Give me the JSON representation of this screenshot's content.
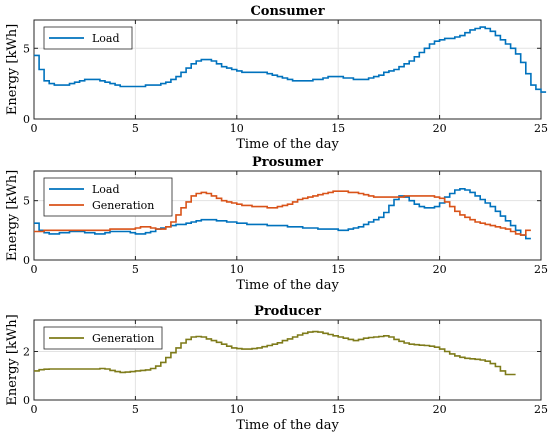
{
  "chart_data": [
    {
      "type": "line",
      "title": "Consumer",
      "xlabel": "Time of the day",
      "ylabel": "Energy [kWh]",
      "xlim": [
        0,
        25
      ],
      "ylim": [
        0,
        7
      ],
      "xticks": [
        0,
        5,
        10,
        15,
        20,
        25
      ],
      "yticks": [
        0,
        5
      ],
      "grid": true,
      "legend_position": "top-left",
      "series": [
        {
          "name": "Load",
          "color": "#0072BD",
          "step": 0.25,
          "values": [
            4.5,
            3.5,
            2.7,
            2.5,
            2.4,
            2.4,
            2.4,
            2.5,
            2.6,
            2.7,
            2.8,
            2.8,
            2.8,
            2.7,
            2.6,
            2.5,
            2.4,
            2.3,
            2.3,
            2.3,
            2.3,
            2.3,
            2.4,
            2.4,
            2.4,
            2.5,
            2.6,
            2.8,
            3.0,
            3.3,
            3.6,
            3.9,
            4.1,
            4.2,
            4.2,
            4.1,
            3.9,
            3.7,
            3.6,
            3.5,
            3.4,
            3.3,
            3.3,
            3.3,
            3.3,
            3.3,
            3.2,
            3.1,
            3.0,
            2.9,
            2.8,
            2.7,
            2.7,
            2.7,
            2.7,
            2.8,
            2.8,
            2.9,
            3.0,
            3.0,
            3.0,
            2.9,
            2.9,
            2.8,
            2.8,
            2.8,
            2.9,
            3.0,
            3.1,
            3.3,
            3.4,
            3.5,
            3.7,
            3.9,
            4.1,
            4.4,
            4.7,
            5.0,
            5.3,
            5.5,
            5.6,
            5.7,
            5.7,
            5.8,
            5.9,
            6.1,
            6.3,
            6.4,
            6.5,
            6.4,
            6.2,
            5.9,
            5.6,
            5.3,
            5.0,
            4.6,
            4.0,
            3.2,
            2.4,
            2.1,
            1.9
          ]
        }
      ]
    },
    {
      "type": "line",
      "title": "Prosumer",
      "xlabel": "Time of the day",
      "ylabel": "Energy [kWh]",
      "xlim": [
        0,
        25
      ],
      "ylim": [
        0,
        7.5
      ],
      "xticks": [
        0,
        5,
        10,
        15,
        20,
        25
      ],
      "yticks": [
        0,
        5
      ],
      "grid": true,
      "legend_position": "top-left",
      "series": [
        {
          "name": "Load",
          "color": "#0072BD",
          "step": 0.25,
          "values": [
            3.1,
            2.5,
            2.3,
            2.2,
            2.2,
            2.3,
            2.3,
            2.4,
            2.4,
            2.4,
            2.3,
            2.3,
            2.2,
            2.2,
            2.3,
            2.4,
            2.4,
            2.4,
            2.4,
            2.3,
            2.2,
            2.2,
            2.3,
            2.4,
            2.6,
            2.7,
            2.8,
            2.9,
            3.0,
            3.0,
            3.1,
            3.2,
            3.3,
            3.4,
            3.4,
            3.4,
            3.3,
            3.3,
            3.2,
            3.2,
            3.1,
            3.1,
            3.0,
            3.0,
            3.0,
            3.0,
            2.9,
            2.9,
            2.9,
            2.9,
            2.8,
            2.8,
            2.8,
            2.7,
            2.7,
            2.7,
            2.6,
            2.6,
            2.6,
            2.6,
            2.5,
            2.5,
            2.6,
            2.7,
            2.8,
            3.0,
            3.2,
            3.4,
            3.6,
            4.0,
            4.6,
            5.1,
            5.4,
            5.3,
            5.0,
            4.7,
            4.5,
            4.4,
            4.4,
            4.5,
            4.8,
            5.3,
            5.6,
            5.9,
            6.0,
            5.9,
            5.7,
            5.4,
            5.1,
            4.8,
            4.5,
            4.1,
            3.7,
            3.3,
            2.9,
            2.5,
            2.1,
            1.8
          ]
        },
        {
          "name": "Generation",
          "color": "#D95319",
          "step": 0.25,
          "values": [
            2.4,
            2.4,
            2.5,
            2.5,
            2.5,
            2.5,
            2.5,
            2.5,
            2.5,
            2.5,
            2.5,
            2.5,
            2.5,
            2.5,
            2.5,
            2.6,
            2.6,
            2.6,
            2.6,
            2.6,
            2.7,
            2.8,
            2.8,
            2.7,
            2.6,
            2.6,
            2.8,
            3.2,
            3.8,
            4.4,
            4.9,
            5.4,
            5.6,
            5.7,
            5.6,
            5.4,
            5.2,
            5.0,
            4.9,
            4.8,
            4.7,
            4.6,
            4.6,
            4.5,
            4.5,
            4.5,
            4.4,
            4.4,
            4.5,
            4.6,
            4.7,
            4.9,
            5.1,
            5.2,
            5.3,
            5.4,
            5.5,
            5.6,
            5.7,
            5.8,
            5.8,
            5.8,
            5.7,
            5.7,
            5.6,
            5.5,
            5.4,
            5.3,
            5.3,
            5.3,
            5.3,
            5.3,
            5.3,
            5.4,
            5.4,
            5.4,
            5.4,
            5.4,
            5.4,
            5.3,
            5.2,
            4.9,
            4.5,
            4.1,
            3.8,
            3.6,
            3.4,
            3.2,
            3.1,
            3.0,
            2.9,
            2.8,
            2.7,
            2.6,
            2.4,
            2.2,
            2.1,
            2.5
          ]
        }
      ]
    },
    {
      "type": "line",
      "title": "Producer",
      "xlabel": "Time of the day",
      "ylabel": "Energy [kWh]",
      "xlim": [
        0,
        25
      ],
      "ylim": [
        0,
        3.3
      ],
      "xticks": [
        0,
        5,
        10,
        15,
        20,
        25
      ],
      "yticks": [
        0,
        2
      ],
      "grid": true,
      "legend_position": "top-left",
      "series": [
        {
          "name": "Generation",
          "color": "#7E7B1A",
          "step": 0.25,
          "values": [
            1.2,
            1.25,
            1.27,
            1.28,
            1.28,
            1.28,
            1.28,
            1.28,
            1.28,
            1.28,
            1.28,
            1.28,
            1.28,
            1.3,
            1.28,
            1.22,
            1.17,
            1.14,
            1.15,
            1.17,
            1.2,
            1.22,
            1.24,
            1.3,
            1.4,
            1.55,
            1.75,
            1.95,
            2.15,
            2.35,
            2.5,
            2.6,
            2.62,
            2.6,
            2.52,
            2.45,
            2.38,
            2.3,
            2.22,
            2.15,
            2.12,
            2.1,
            2.1,
            2.12,
            2.15,
            2.2,
            2.25,
            2.3,
            2.36,
            2.45,
            2.52,
            2.6,
            2.68,
            2.75,
            2.8,
            2.82,
            2.8,
            2.75,
            2.7,
            2.65,
            2.6,
            2.55,
            2.5,
            2.45,
            2.5,
            2.55,
            2.58,
            2.6,
            2.62,
            2.65,
            2.6,
            2.5,
            2.42,
            2.35,
            2.3,
            2.28,
            2.26,
            2.25,
            2.22,
            2.18,
            2.1,
            2.0,
            1.9,
            1.82,
            1.76,
            1.72,
            1.7,
            1.68,
            1.65,
            1.6,
            1.5,
            1.38,
            1.2,
            1.05,
            1.05
          ]
        }
      ]
    }
  ]
}
